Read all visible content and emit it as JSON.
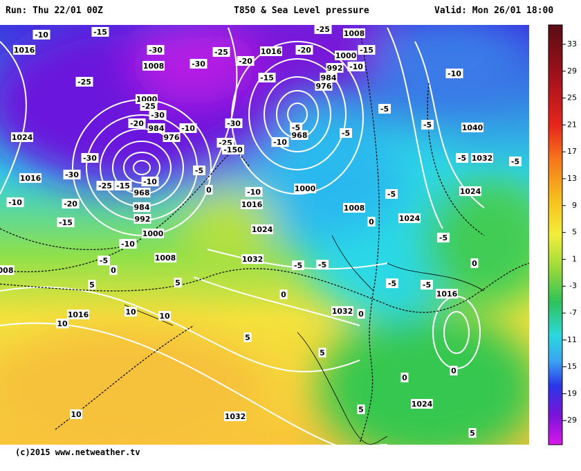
{
  "header": {
    "run": "Run: Thu 22/01 00Z",
    "title": "T850 & Sea Level pressure",
    "valid": "Valid: Mon 26/01 18:00"
  },
  "footer": "(c)2015 www.netweather.tv",
  "colorbar": {
    "ticks": [
      33,
      29,
      25,
      21,
      17,
      13,
      9,
      5,
      1,
      -3,
      -7,
      -11,
      -15,
      -19,
      -29
    ]
  },
  "map": {
    "labels": [
      "-10",
      "-15",
      "1016",
      "-30",
      "-25",
      "-20",
      "1016",
      "-20",
      "-25",
      "1008",
      "-15",
      "1000",
      "992",
      "-10",
      "984",
      "976",
      "-15",
      "1008",
      "-30",
      "-25",
      "1000",
      "-25",
      "-30",
      "-20",
      "984",
      "976",
      "-10",
      "-30",
      "-25",
      "-150",
      "1024",
      "-30",
      "-5",
      "968",
      "-10",
      "-5",
      "-5",
      "-5",
      "-10",
      "1040",
      "-5",
      "1032",
      "-5",
      "1016",
      "-30",
      "-25",
      "-15",
      "968",
      "-10",
      "-5",
      "0",
      "-10",
      "1000",
      "-5",
      "1024",
      "-10",
      "-20",
      "984",
      "1016",
      "1008",
      "-15",
      "992",
      "0",
      "1024",
      "1000",
      "-10",
      "1024",
      "-5",
      "1008",
      "-5",
      "1032",
      "-5",
      "-5",
      "0",
      "0",
      "008",
      "5",
      "5",
      "0",
      "-5",
      "-5",
      "1016",
      "10",
      "1016",
      "10",
      "1032",
      "0",
      "10",
      "5",
      "5",
      "0",
      "0",
      "1024",
      "10",
      "1032",
      "5",
      "5"
    ]
  }
}
